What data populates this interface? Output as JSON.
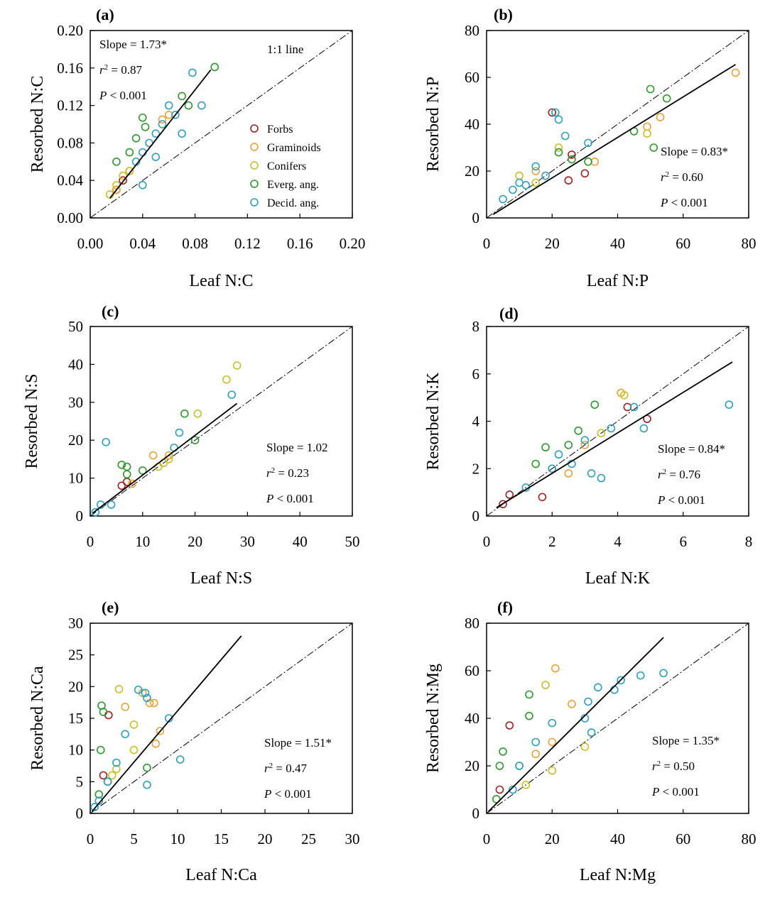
{
  "group_colors": {
    "Forbs": "#a31e1e",
    "Graminoids": "#f0a030",
    "Conifers": "#c8c020",
    "Everg. ang.": "#2a9a2a",
    "Decid. ang.": "#2aa0c0"
  },
  "legend": [
    "Forbs",
    "Graminoids",
    "Conifers",
    "Everg. ang.",
    "Decid. ang."
  ],
  "chart_data": [
    {
      "type": "scatter",
      "panel": "(a)",
      "xlabel": "Leaf N:C",
      "ylabel": "Resorbed N:C",
      "xlim": [
        0,
        0.2
      ],
      "ylim": [
        0,
        0.2
      ],
      "xticks": [
        "0.00",
        "0.04",
        "0.08",
        "0.12",
        "0.16",
        "0.20"
      ],
      "yticks": [
        "0.00",
        "0.04",
        "0.08",
        "0.12",
        "0.16",
        "0.20"
      ],
      "one_to_one_label": "1:1 line",
      "fit": {
        "slope_text": "Slope = 1.73*",
        "r2_prefix": "r",
        "r2_text": " = 0.87",
        "p_prefix": "P",
        "p_text": " < 0.001",
        "start": [
          0.015,
          0.021
        ],
        "end": [
          0.092,
          0.158
        ]
      },
      "series": [
        {
          "name": "Forbs",
          "points": [
            [
              0.02,
              0.03
            ],
            [
              0.025,
              0.04
            ]
          ]
        },
        {
          "name": "Graminoids",
          "points": [
            [
              0.02,
              0.03
            ],
            [
              0.03,
              0.05
            ],
            [
              0.055,
              0.105
            ],
            [
              0.06,
              0.11
            ]
          ]
        },
        {
          "name": "Conifers",
          "points": [
            [
              0.015,
              0.025
            ],
            [
              0.02,
              0.035
            ],
            [
              0.025,
              0.045
            ],
            [
              0.03,
              0.05
            ]
          ]
        },
        {
          "name": "Everg. ang.",
          "points": [
            [
              0.04,
              0.107
            ],
            [
              0.042,
              0.097
            ],
            [
              0.07,
              0.13
            ],
            [
              0.075,
              0.12
            ],
            [
              0.095,
              0.161
            ],
            [
              0.03,
              0.07
            ],
            [
              0.02,
              0.06
            ],
            [
              0.035,
              0.085
            ]
          ]
        },
        {
          "name": "Decid. ang.",
          "points": [
            [
              0.078,
              0.155
            ],
            [
              0.085,
              0.12
            ],
            [
              0.07,
              0.09
            ],
            [
              0.06,
              0.12
            ],
            [
              0.05,
              0.09
            ],
            [
              0.045,
              0.08
            ],
            [
              0.04,
              0.07
            ],
            [
              0.035,
              0.06
            ],
            [
              0.04,
              0.035
            ],
            [
              0.05,
              0.065
            ],
            [
              0.055,
              0.1
            ],
            [
              0.065,
              0.11
            ]
          ]
        }
      ]
    },
    {
      "type": "scatter",
      "panel": "(b)",
      "xlabel": "Leaf N:P",
      "ylabel": "Resorbed N:P",
      "xlim": [
        0,
        80
      ],
      "ylim": [
        0,
        80
      ],
      "xticks": [
        "0",
        "20",
        "40",
        "60",
        "80"
      ],
      "yticks": [
        "0",
        "20",
        "40",
        "60",
        "80"
      ],
      "fit": {
        "slope_text": "Slope = 0.83*",
        "r2_prefix": "r",
        "r2_text": " = 0.60",
        "p_prefix": "P",
        "p_text": " < 0.001",
        "start": [
          2,
          1.5
        ],
        "end": [
          76,
          65.5
        ]
      },
      "series": [
        {
          "name": "Forbs",
          "points": [
            [
              20,
              45
            ],
            [
              30,
              19
            ],
            [
              26,
              27
            ],
            [
              25,
              16
            ]
          ]
        },
        {
          "name": "Graminoids",
          "points": [
            [
              76,
              62
            ],
            [
              53,
              43
            ],
            [
              49,
              39
            ],
            [
              33,
              24
            ],
            [
              15,
              20
            ]
          ]
        },
        {
          "name": "Conifers",
          "points": [
            [
              49,
              36
            ],
            [
              22,
              30
            ],
            [
              10,
              18
            ],
            [
              15,
              15
            ]
          ]
        },
        {
          "name": "Everg. ang.",
          "points": [
            [
              50,
              55
            ],
            [
              55,
              51
            ],
            [
              51,
              30
            ],
            [
              45,
              37
            ],
            [
              31,
              24
            ],
            [
              26,
              25
            ],
            [
              22,
              28
            ]
          ]
        },
        {
          "name": "Decid. ang.",
          "points": [
            [
              21,
              45
            ],
            [
              22,
              42
            ],
            [
              24,
              35
            ],
            [
              31,
              32
            ],
            [
              15,
              22
            ],
            [
              10,
              15
            ],
            [
              5,
              8
            ],
            [
              8,
              12
            ],
            [
              12,
              14
            ],
            [
              18,
              18
            ]
          ]
        }
      ]
    },
    {
      "type": "scatter",
      "panel": "(c)",
      "xlabel": "Leaf N:S",
      "ylabel": "Resorbed N:S",
      "xlim": [
        0,
        50
      ],
      "ylim": [
        0,
        50
      ],
      "xticks": [
        "0",
        "10",
        "20",
        "30",
        "40",
        "50"
      ],
      "yticks": [
        "0",
        "10",
        "20",
        "30",
        "40",
        "50"
      ],
      "fit": {
        "slope_text": "Slope = 1.02",
        "r2_prefix": "r",
        "r2_text": " = 0.23",
        "p_prefix": "P",
        "p_text": " < 0.001",
        "start": [
          0.5,
          0.8
        ],
        "end": [
          28,
          29.7
        ]
      },
      "series": [
        {
          "name": "Forbs",
          "points": [
            [
              6,
              8
            ],
            [
              7,
              9
            ]
          ]
        },
        {
          "name": "Graminoids",
          "points": [
            [
              8,
              8.5
            ],
            [
              12,
              16
            ],
            [
              15,
              16
            ]
          ]
        },
        {
          "name": "Conifers",
          "points": [
            [
              28,
              39.7
            ],
            [
              26,
              36
            ],
            [
              20.5,
              27
            ],
            [
              13,
              13
            ],
            [
              14,
              14
            ],
            [
              15,
              15
            ]
          ]
        },
        {
          "name": "Everg. ang.",
          "points": [
            [
              18,
              27
            ],
            [
              6,
              13.5
            ],
            [
              7,
              13
            ],
            [
              7,
              11
            ],
            [
              10,
              12
            ],
            [
              20,
              20
            ]
          ]
        },
        {
          "name": "Decid. ang.",
          "points": [
            [
              27,
              32
            ],
            [
              3,
              19.5
            ],
            [
              4,
              3
            ],
            [
              17,
              22
            ],
            [
              16,
              18
            ],
            [
              1,
              1
            ],
            [
              2,
              3
            ]
          ]
        }
      ]
    },
    {
      "type": "scatter",
      "panel": "(d)",
      "xlabel": "Leaf N:K",
      "ylabel": "Resorbed N:K",
      "xlim": [
        0,
        8
      ],
      "ylim": [
        0,
        8
      ],
      "xticks": [
        "0",
        "2",
        "4",
        "6",
        "8"
      ],
      "yticks": [
        "0",
        "2",
        "4",
        "6",
        "8"
      ],
      "fit": {
        "slope_text": "Slope = 0.84*",
        "r2_prefix": "r",
        "r2_text": " = 0.76",
        "p_prefix": "P",
        "p_text": " < 0.001",
        "start": [
          0.3,
          0.35
        ],
        "end": [
          7.5,
          6.5
        ]
      },
      "series": [
        {
          "name": "Forbs",
          "points": [
            [
              4.3,
              4.6
            ],
            [
              4.9,
              4.1
            ],
            [
              0.5,
              0.5
            ],
            [
              1.7,
              0.8
            ],
            [
              0.7,
              0.9
            ]
          ]
        },
        {
          "name": "Graminoids",
          "points": [
            [
              4.1,
              5.2
            ],
            [
              2.5,
              1.8
            ],
            [
              3.0,
              3.0
            ]
          ]
        },
        {
          "name": "Conifers",
          "points": [
            [
              4.2,
              5.1
            ],
            [
              3.5,
              3.5
            ],
            [
              2.0,
              2.0
            ]
          ]
        },
        {
          "name": "Everg. ang.",
          "points": [
            [
              3.3,
              4.7
            ],
            [
              1.8,
              2.9
            ],
            [
              2.8,
              3.6
            ],
            [
              1.5,
              2.2
            ],
            [
              2.5,
              3.0
            ]
          ]
        },
        {
          "name": "Decid. ang.",
          "points": [
            [
              7.4,
              4.7
            ],
            [
              4.5,
              4.6
            ],
            [
              4.8,
              3.7
            ],
            [
              3.8,
              3.7
            ],
            [
              3.0,
              3.2
            ],
            [
              2.0,
              2.0
            ],
            [
              1.2,
              1.2
            ],
            [
              3.2,
              1.8
            ],
            [
              3.5,
              1.6
            ],
            [
              2.2,
              2.6
            ],
            [
              2.6,
              2.2
            ]
          ]
        }
      ]
    },
    {
      "type": "scatter",
      "panel": "(e)",
      "xlabel": "Leaf N:Ca",
      "ylabel": "Resorbed N:Ca",
      "xlim": [
        0,
        30
      ],
      "ylim": [
        0,
        30
      ],
      "xticks": [
        "0",
        "5",
        "10",
        "15",
        "20",
        "25",
        "30"
      ],
      "yticks": [
        "0",
        "5",
        "10",
        "15",
        "20",
        "25",
        "30"
      ],
      "fit": {
        "slope_text": "Slope = 1.51*",
        "r2_prefix": "r",
        "r2_text": " = 0.47",
        "p_prefix": "P",
        "p_text": " < 0.001",
        "start": [
          0.2,
          0.3
        ],
        "end": [
          17.3,
          28
        ]
      },
      "series": [
        {
          "name": "Forbs",
          "points": [
            [
              2.1,
              15.5
            ],
            [
              1.5,
              6
            ]
          ]
        },
        {
          "name": "Graminoids",
          "points": [
            [
              6.8,
              17.4
            ],
            [
              7.3,
              17.4
            ],
            [
              8,
              13
            ],
            [
              7.5,
              11
            ],
            [
              4,
              16.8
            ],
            [
              6,
              19
            ]
          ]
        },
        {
          "name": "Conifers",
          "points": [
            [
              3.3,
              19.6
            ],
            [
              5,
              14
            ],
            [
              5,
              10
            ],
            [
              3,
              7
            ],
            [
              2.5,
              6
            ]
          ]
        },
        {
          "name": "Everg. ang.",
          "points": [
            [
              1.3,
              17
            ],
            [
              1.5,
              16
            ],
            [
              1.2,
              10
            ],
            [
              6.5,
              7.2
            ],
            [
              2,
              5
            ],
            [
              1,
              3
            ]
          ]
        },
        {
          "name": "Decid. ang.",
          "points": [
            [
              5.5,
              19.5
            ],
            [
              6.3,
              19
            ],
            [
              6.5,
              18.2
            ],
            [
              4,
              12.5
            ],
            [
              10.3,
              8.5
            ],
            [
              9,
              15
            ],
            [
              6.5,
              4.5
            ],
            [
              3,
              8
            ],
            [
              2,
              5
            ],
            [
              1,
              2
            ],
            [
              0.5,
              1
            ]
          ]
        }
      ]
    },
    {
      "type": "scatter",
      "panel": "(f)",
      "xlabel": "Leaf N:Mg",
      "ylabel": "Resorbed N:Mg",
      "xlim": [
        0,
        80
      ],
      "ylim": [
        0,
        80
      ],
      "xticks": [
        "0",
        "20",
        "40",
        "60",
        "80"
      ],
      "yticks": [
        "0",
        "20",
        "40",
        "60",
        "80"
      ],
      "fit": {
        "slope_text": "Slope = 1.35*",
        "r2_prefix": "r",
        "r2_text": " = 0.50",
        "p_prefix": "P",
        "p_text": " < 0.001",
        "start": [
          0.5,
          0.7
        ],
        "end": [
          54,
          74
        ]
      },
      "series": [
        {
          "name": "Forbs",
          "points": [
            [
              7,
              37
            ],
            [
              4,
              10
            ]
          ]
        },
        {
          "name": "Graminoids",
          "points": [
            [
              21,
              61
            ],
            [
              26,
              46
            ],
            [
              20,
              30
            ],
            [
              15,
              25
            ]
          ]
        },
        {
          "name": "Conifers",
          "points": [
            [
              18,
              54
            ],
            [
              30,
              28
            ],
            [
              20,
              18
            ],
            [
              12,
              12
            ]
          ]
        },
        {
          "name": "Everg. ang.",
          "points": [
            [
              13,
              50
            ],
            [
              13,
              41
            ],
            [
              5,
              26
            ],
            [
              4,
              20
            ],
            [
              10,
              20
            ],
            [
              3,
              6
            ]
          ]
        },
        {
          "name": "Decid. ang.",
          "points": [
            [
              54,
              59
            ],
            [
              47,
              58
            ],
            [
              41,
              56
            ],
            [
              39,
              52
            ],
            [
              34,
              53
            ],
            [
              31,
              47
            ],
            [
              30,
              40
            ],
            [
              32,
              34
            ],
            [
              20,
              38
            ],
            [
              15,
              30
            ],
            [
              10,
              20
            ],
            [
              8,
              10
            ]
          ]
        }
      ]
    }
  ]
}
